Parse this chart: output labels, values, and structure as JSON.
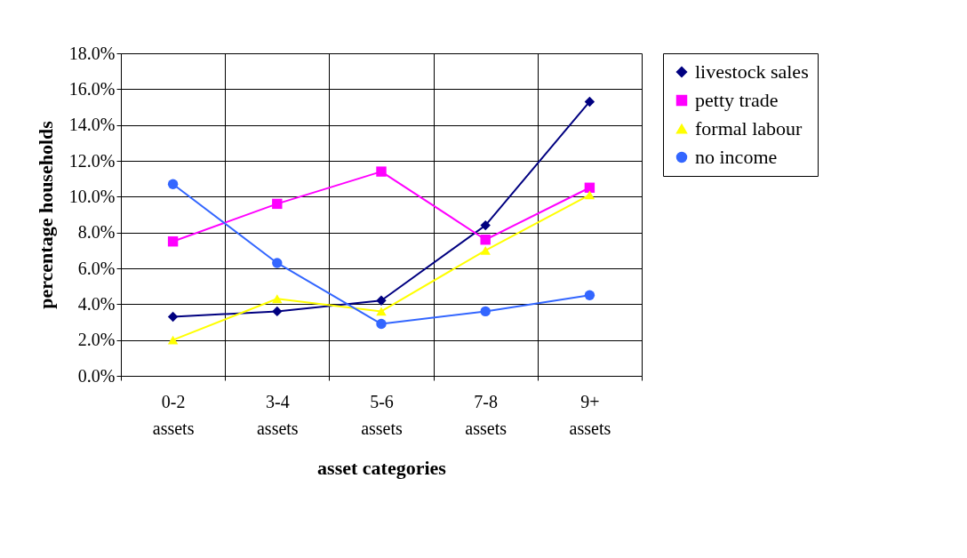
{
  "chart_data": {
    "type": "line",
    "xlabel": "asset categories",
    "ylabel": "percentage households",
    "categories": [
      "0-2 assets",
      "3-4 assets",
      "5-6 assets",
      "7-8 assets",
      "9+ assets"
    ],
    "series": [
      {
        "name": "livestock sales",
        "color": "#000080",
        "marker": "diamond",
        "values": [
          3.3,
          3.6,
          4.2,
          8.4,
          15.3
        ]
      },
      {
        "name": "petty trade",
        "color": "#ff00ff",
        "marker": "square",
        "values": [
          7.5,
          9.6,
          11.4,
          7.6,
          10.5
        ]
      },
      {
        "name": "formal labour",
        "color": "#ffff00",
        "marker": "triangle",
        "values": [
          2.0,
          4.3,
          3.6,
          7.0,
          10.1
        ]
      },
      {
        "name": "no income",
        "color": "#3366ff",
        "marker": "circle",
        "values": [
          10.7,
          6.3,
          2.9,
          3.6,
          4.5
        ]
      }
    ],
    "ylim": [
      0,
      18
    ],
    "yticks": [
      {
        "value": 0,
        "label": "0.0%"
      },
      {
        "value": 2,
        "label": "2.0%"
      },
      {
        "value": 4,
        "label": "4.0%"
      },
      {
        "value": 6,
        "label": "6.0%"
      },
      {
        "value": 8,
        "label": "8.0%"
      },
      {
        "value": 10,
        "label": "10.0%"
      },
      {
        "value": 12,
        "label": "12.0%"
      },
      {
        "value": 14,
        "label": "14.0%"
      },
      {
        "value": 16,
        "label": "16.0%"
      },
      {
        "value": 18,
        "label": "18.0%"
      }
    ],
    "grid": true,
    "legend": "right",
    "line_style": "solid"
  }
}
